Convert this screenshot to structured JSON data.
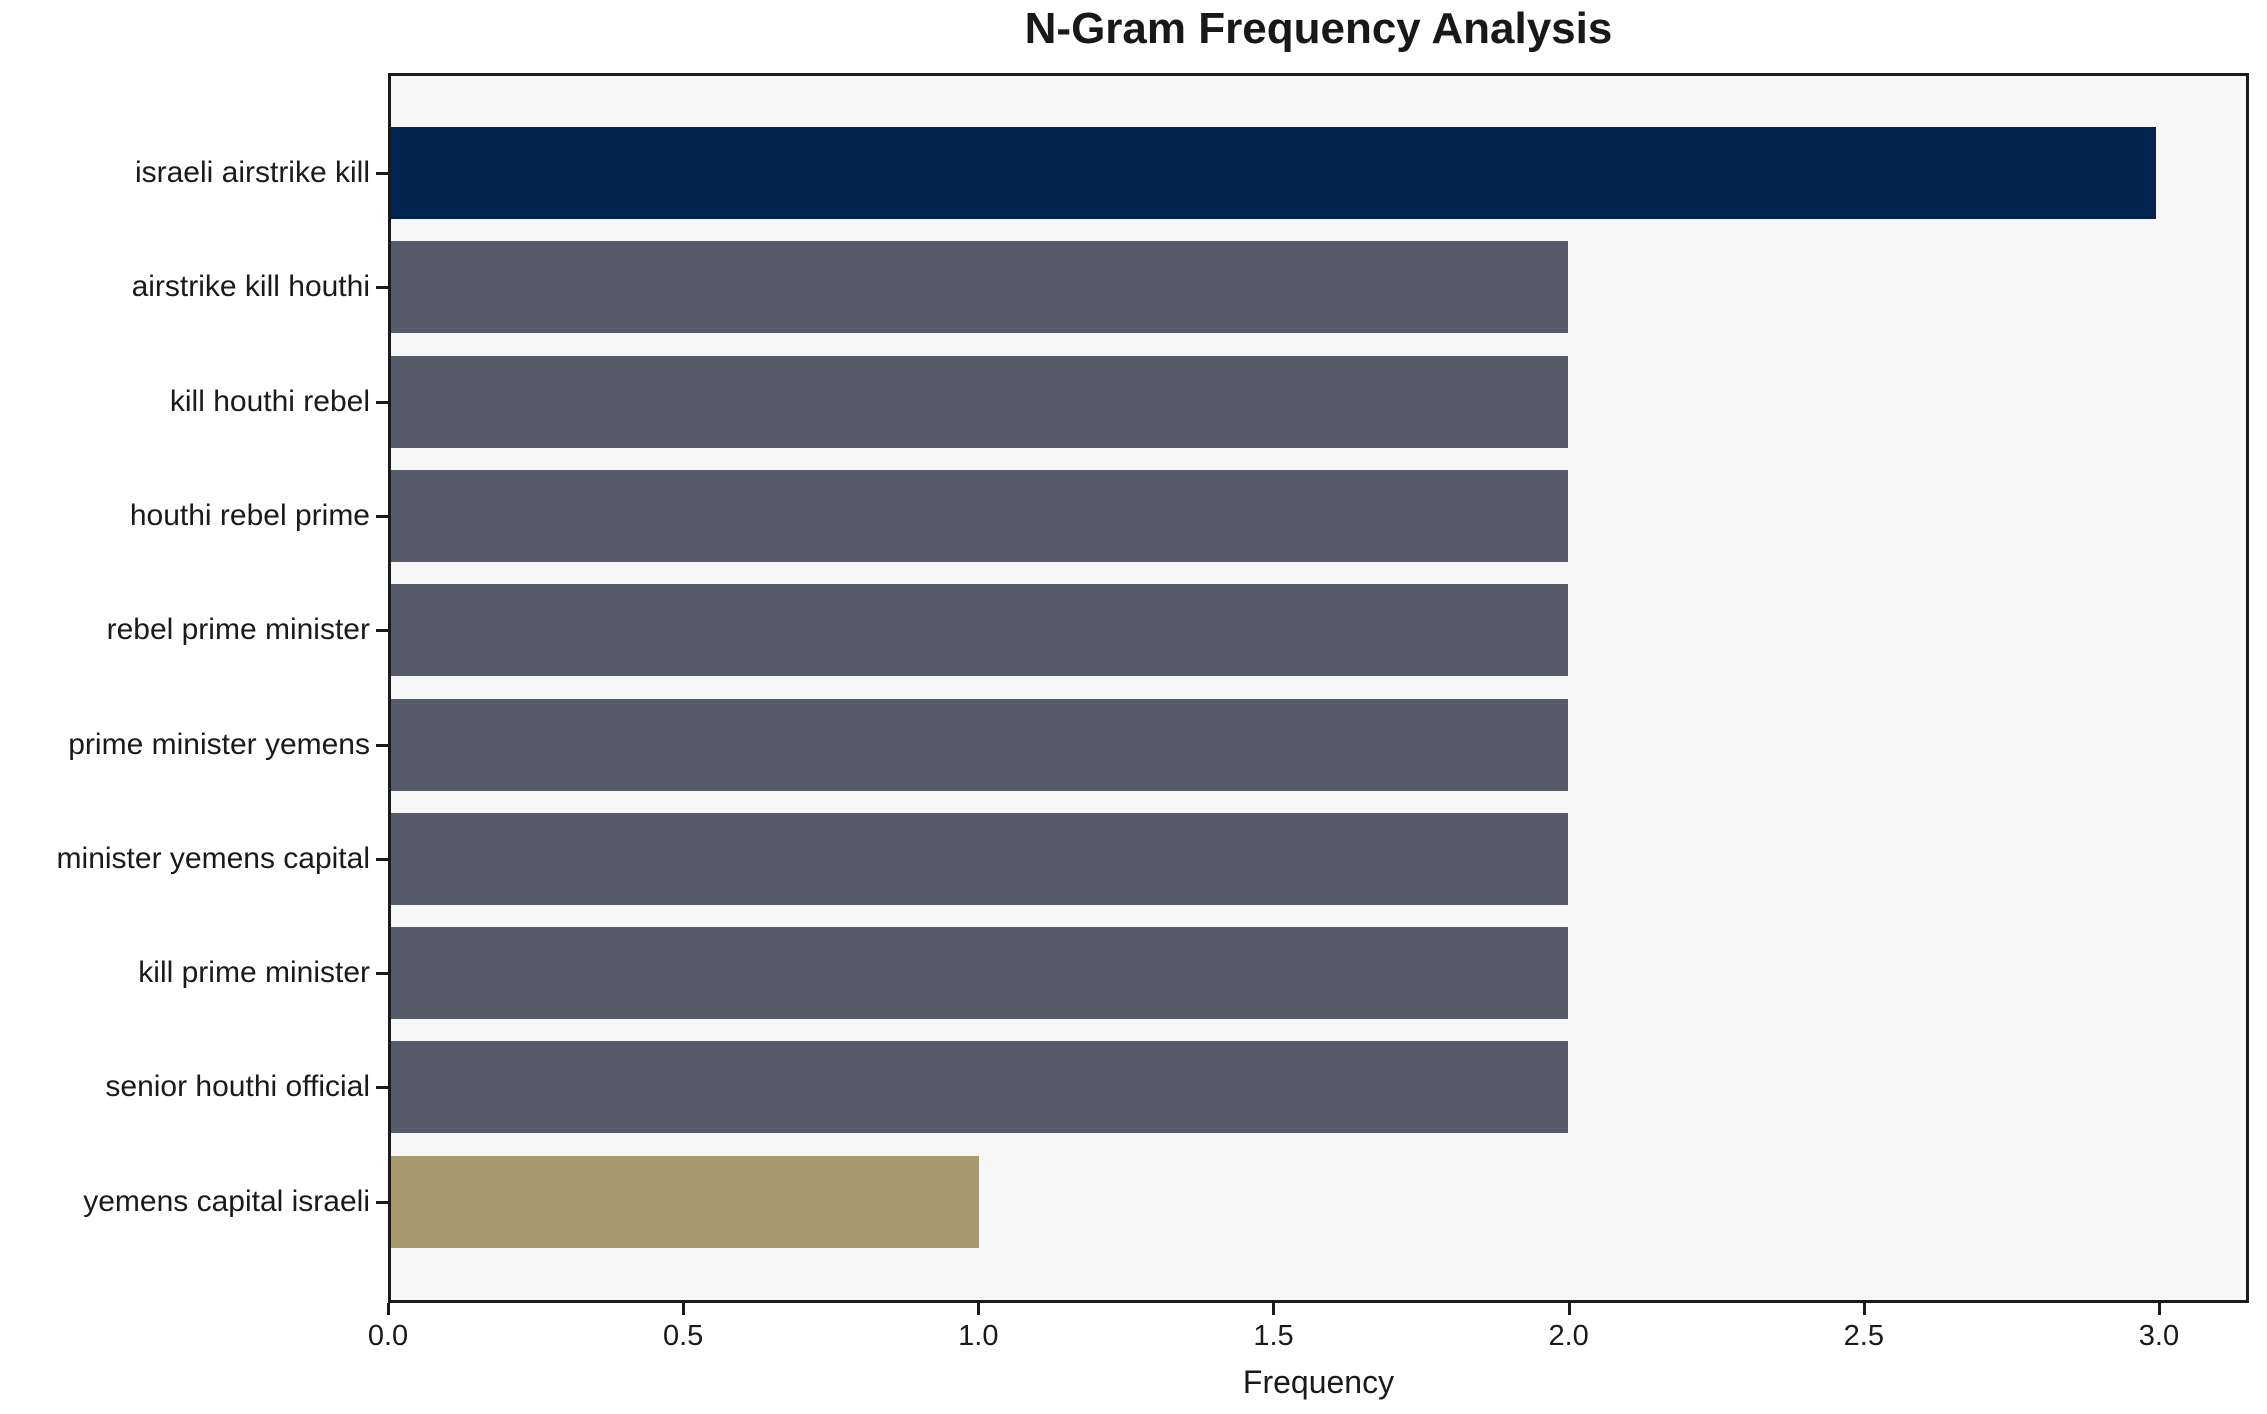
{
  "chart_data": {
    "type": "bar",
    "orientation": "horizontal",
    "title": "N-Gram Frequency Analysis",
    "xlabel": "Frequency",
    "ylabel": "",
    "categories": [
      "israeli airstrike kill",
      "airstrike kill houthi",
      "kill houthi rebel",
      "houthi rebel prime",
      "rebel prime minister",
      "prime minister yemens",
      "minister yemens capital",
      "kill prime minister",
      "senior houthi official",
      "yemens capital israeli"
    ],
    "values": [
      3,
      2,
      2,
      2,
      2,
      2,
      2,
      2,
      2,
      1
    ],
    "bar_colors": [
      "#02234d",
      "#565b6a",
      "#565b6a",
      "#565b6a",
      "#565b6a",
      "#565b6a",
      "#565b6a",
      "#565b6a",
      "#565b6a",
      "#a69a6e"
    ],
    "x_ticks": [
      0.0,
      0.5,
      1.0,
      1.5,
      2.0,
      2.5,
      3.0
    ],
    "x_tick_labels": [
      "0.0",
      "0.5",
      "1.0",
      "1.5",
      "2.0",
      "2.5",
      "3.0"
    ],
    "xlim": [
      0,
      3.15
    ],
    "grid": false,
    "legend_position": "none",
    "plot_background": "#f7f7f8",
    "figure_background": "#ffffff",
    "spine_color": "#1a1a1a"
  }
}
